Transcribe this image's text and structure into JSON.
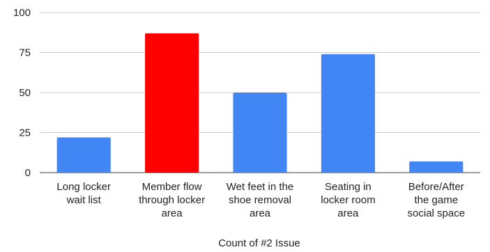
{
  "chart_data": {
    "type": "bar",
    "categories": [
      [
        "Long locker",
        "wait list"
      ],
      [
        "Member flow",
        "through locker",
        "area"
      ],
      [
        "Wet feet in the",
        "shoe removal",
        "area"
      ],
      [
        "Seating in",
        "locker room",
        "area"
      ],
      [
        "Before/After",
        "the game",
        "social space"
      ]
    ],
    "values": [
      22,
      87,
      50,
      74,
      7
    ],
    "colors": [
      "#4285f4",
      "#ff0000",
      "#4285f4",
      "#4285f4",
      "#4285f4"
    ],
    "xlabel": "Count of #2 Issue",
    "ylabel": "",
    "ylim": [
      0,
      100
    ],
    "yticks": [
      0,
      25,
      50,
      75,
      100
    ],
    "grid": true,
    "gridline_color": "#cccccc"
  }
}
